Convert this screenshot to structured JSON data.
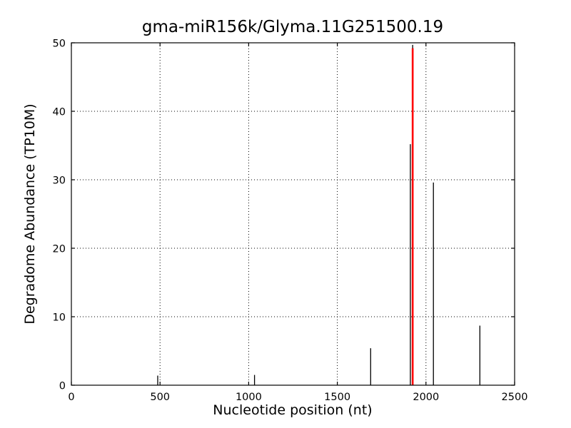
{
  "figure": {
    "background": "#ffffff"
  },
  "chart_data": {
    "type": "bar",
    "title": "gma-miR156k/Glyma.11G251500.19",
    "xlabel": "Nucleotide position (nt)",
    "ylabel": "Degradome Abundance (TP10M)",
    "xlim": [
      0,
      2500
    ],
    "ylim": [
      0,
      50
    ],
    "xticks": [
      0,
      500,
      1000,
      1500,
      2000,
      2500
    ],
    "yticks": [
      0,
      10,
      20,
      30,
      40,
      50
    ],
    "grid": "dotted",
    "legend": "none",
    "series_note": "vertical spike (stem) plot; red spike marks the miRNA cleavage site",
    "points": [
      {
        "pos": 487,
        "value": 1.4,
        "color": "black"
      },
      {
        "pos": 1033,
        "value": 1.5,
        "color": "black"
      },
      {
        "pos": 1688,
        "value": 5.4,
        "color": "black"
      },
      {
        "pos": 1912,
        "value": 35.2,
        "color": "black"
      },
      {
        "pos": 1925,
        "value": 49.7,
        "color": "black"
      },
      {
        "pos": 1925,
        "value": 49.2,
        "color": "red",
        "highlight": true
      },
      {
        "pos": 2042,
        "value": 29.6,
        "color": "black"
      },
      {
        "pos": 2304,
        "value": 8.7,
        "color": "black"
      }
    ],
    "colors": {
      "spike": "#000000",
      "highlight": "#ff0000",
      "grid": "#000000",
      "axis": "#000000"
    }
  }
}
